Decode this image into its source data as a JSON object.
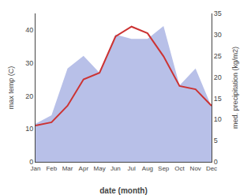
{
  "chart_data": {
    "type": "line",
    "xlabel": "date (month)",
    "ylabel": "max temp (C)",
    "y2label": "med. precipitation (kg/m2)",
    "categories": [
      "Jan",
      "Feb",
      "Mar",
      "Apr",
      "May",
      "Jun",
      "Jul",
      "Aug",
      "Sep",
      "Oct",
      "Nov",
      "Dec"
    ],
    "series": [
      {
        "type": "area",
        "axis": "y2",
        "color": "#b8c0e8",
        "values": [
          9,
          11,
          22,
          25,
          21,
          30,
          29,
          29,
          32,
          18,
          22,
          13
        ]
      },
      {
        "type": "line",
        "color": "#cc3333",
        "values": [
          11,
          12,
          17,
          25,
          27,
          38,
          41,
          39,
          32,
          23,
          22,
          17
        ]
      }
    ],
    "ylim": [
      0,
      45
    ],
    "yticks": [
      0,
      10,
      20,
      30,
      40
    ],
    "y2lim": [
      0,
      35
    ],
    "y2ticks": [
      0,
      5,
      10,
      15,
      20,
      25,
      30,
      35
    ],
    "grid": false
  }
}
